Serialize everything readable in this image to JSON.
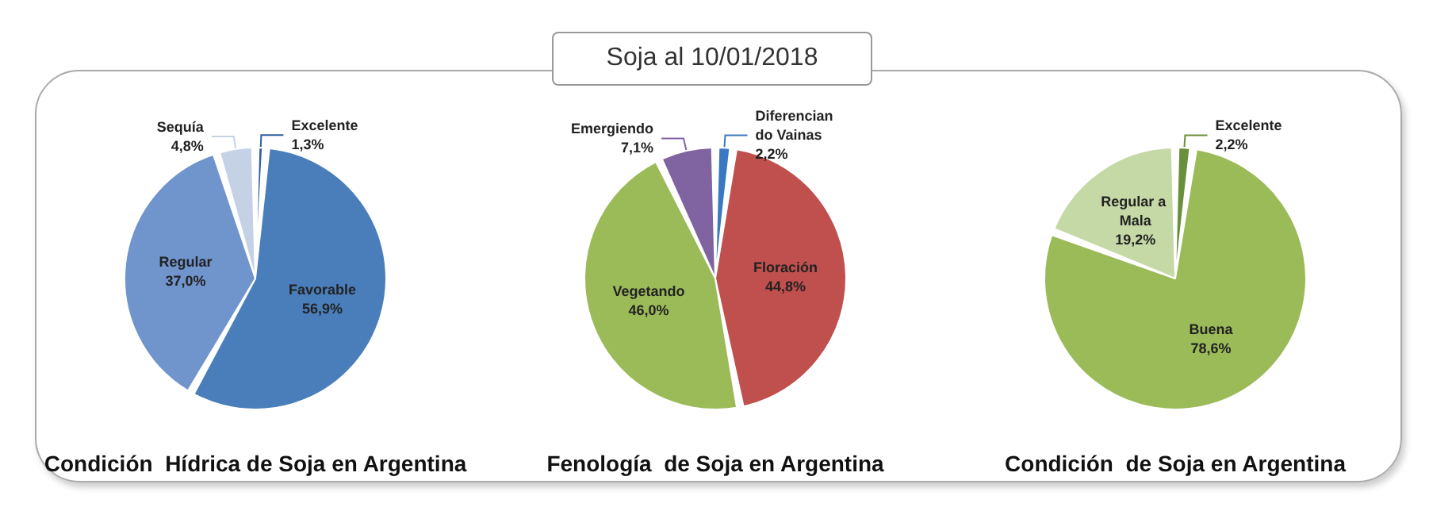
{
  "chart_data": [
    {
      "type": "other",
      "title": "Soja al 10/01/2018"
    },
    {
      "type": "pie",
      "title": "Condición  Hídrica de Soja en Argentina",
      "categories": [
        "Excelente",
        "Favorable",
        "Regular",
        "Sequía"
      ],
      "values": [
        1.3,
        56.9,
        37.0,
        4.8
      ],
      "value_labels": [
        "1,3%",
        "56,9%",
        "37,0%",
        "4,8%"
      ],
      "colors": [
        "#2f5f9e",
        "#4a7ebb",
        "#7094cc",
        "#c5d2e6"
      ]
    },
    {
      "type": "pie",
      "title": "Fenología  de Soja en Argentina",
      "categories": [
        "Diferencian do Vainas",
        "Floración",
        "Vegetando",
        "Emergiendo"
      ],
      "values": [
        2.2,
        44.8,
        46.0,
        7.1
      ],
      "value_labels": [
        "2,2%",
        "44,8%",
        "46,0%",
        "7,1%"
      ],
      "colors": [
        "#3a78c2",
        "#c0504d",
        "#9bbb59",
        "#8064a2"
      ]
    },
    {
      "type": "pie",
      "title": "Condición  de Soja en Argentina",
      "categories": [
        "Excelente",
        "Buena",
        "Regular a Mala"
      ],
      "values": [
        2.2,
        78.6,
        19.2
      ],
      "value_labels": [
        "2,2%",
        "78,6%",
        "19,2%"
      ],
      "colors": [
        "#6a8f3a",
        "#9bbb59",
        "#c5d9a6"
      ]
    }
  ]
}
